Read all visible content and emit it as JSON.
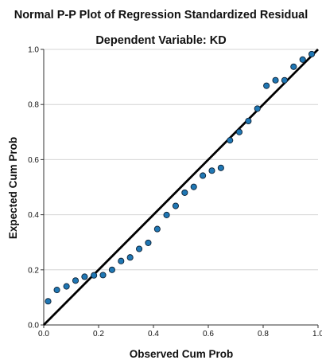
{
  "chart_data": {
    "type": "scatter",
    "title": "Normal P-P Plot of Regression Standardized Residual",
    "subtitle": "Dependent Variable: KD",
    "xlabel": "Observed Cum Prob",
    "ylabel": "Expected Cum Prob",
    "xlim": [
      0,
      1
    ],
    "ylim": [
      0,
      1
    ],
    "x_ticks": [
      "0.0",
      "0.2",
      "0.4",
      "0.6",
      "0.8",
      "1.0"
    ],
    "y_ticks": [
      "0.0",
      "0.2",
      "0.4",
      "0.6",
      "0.8",
      "1.0"
    ],
    "grid": "horizontal",
    "reference_line": {
      "from": [
        0,
        0
      ],
      "to": [
        1,
        1
      ],
      "color": "#000000"
    },
    "point_color": "#1f77b4",
    "points": [
      {
        "x": 0.016,
        "y": 0.086
      },
      {
        "x": 0.048,
        "y": 0.127
      },
      {
        "x": 0.083,
        "y": 0.14
      },
      {
        "x": 0.116,
        "y": 0.161
      },
      {
        "x": 0.149,
        "y": 0.175
      },
      {
        "x": 0.183,
        "y": 0.18
      },
      {
        "x": 0.216,
        "y": 0.181
      },
      {
        "x": 0.249,
        "y": 0.2
      },
      {
        "x": 0.282,
        "y": 0.232
      },
      {
        "x": 0.315,
        "y": 0.245
      },
      {
        "x": 0.348,
        "y": 0.276
      },
      {
        "x": 0.381,
        "y": 0.298
      },
      {
        "x": 0.414,
        "y": 0.348
      },
      {
        "x": 0.448,
        "y": 0.399
      },
      {
        "x": 0.481,
        "y": 0.432
      },
      {
        "x": 0.514,
        "y": 0.48
      },
      {
        "x": 0.547,
        "y": 0.501
      },
      {
        "x": 0.58,
        "y": 0.542
      },
      {
        "x": 0.613,
        "y": 0.56
      },
      {
        "x": 0.646,
        "y": 0.57
      },
      {
        "x": 0.679,
        "y": 0.67
      },
      {
        "x": 0.713,
        "y": 0.7
      },
      {
        "x": 0.746,
        "y": 0.74
      },
      {
        "x": 0.779,
        "y": 0.785
      },
      {
        "x": 0.812,
        "y": 0.868
      },
      {
        "x": 0.845,
        "y": 0.888
      },
      {
        "x": 0.878,
        "y": 0.888
      },
      {
        "x": 0.911,
        "y": 0.937
      },
      {
        "x": 0.944,
        "y": 0.963
      },
      {
        "x": 0.977,
        "y": 0.983
      }
    ]
  }
}
